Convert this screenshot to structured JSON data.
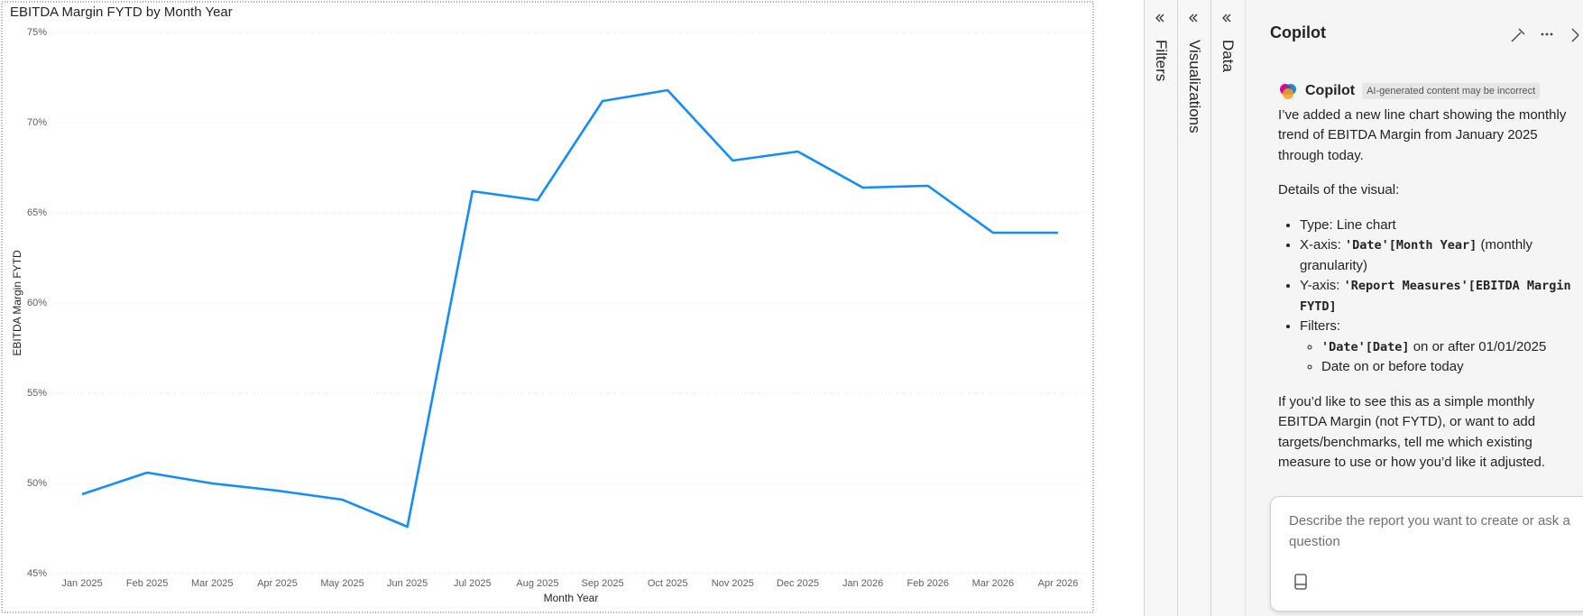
{
  "chart_data": {
    "type": "line",
    "title": "EBITDA Margin FYTD by Month Year",
    "x_label": "Month Year",
    "y_label": "EBITDA Margin FYTD",
    "categories": [
      "Jan 2025",
      "Feb 2025",
      "Mar 2025",
      "Apr 2025",
      "May 2025",
      "Jun 2025",
      "Jul 2025",
      "Aug 2025",
      "Sep 2025",
      "Oct 2025",
      "Nov 2025",
      "Dec 2025",
      "Jan 2026",
      "Feb 2026",
      "Mar 2026",
      "Apr 2026"
    ],
    "values": [
      49.4,
      50.6,
      50.0,
      49.6,
      49.1,
      47.6,
      66.2,
      65.7,
      71.2,
      71.8,
      67.9,
      68.4,
      66.4,
      66.5,
      63.9,
      63.9
    ],
    "color": "#118dff",
    "ylim": [
      45,
      75
    ],
    "yticks": [
      {
        "value": 45,
        "label": "45%"
      },
      {
        "value": 50,
        "label": "50%"
      },
      {
        "value": 55,
        "label": "55%"
      },
      {
        "value": 60,
        "label": "60%"
      },
      {
        "value": 65,
        "label": "65%"
      },
      {
        "value": 70,
        "label": "70%"
      },
      {
        "value": 75,
        "label": "75%"
      }
    ],
    "grid": true
  },
  "panes": {
    "filters": "Filters",
    "visualizations": "Visualizations",
    "data": "Data"
  },
  "copilot": {
    "title": "Copilot",
    "message": {
      "sender": "Copilot",
      "badge": "AI-generated content may be incorrect",
      "intro": "I’ve added a new line chart showing the monthly trend of EBITDA Margin from January 2025 through today.",
      "details_heading": "Details of the visual:",
      "items": [
        {
          "text": "Type: Line chart"
        },
        {
          "label": "X-axis:",
          "code": "'Date'[Month Year]",
          "text": "(monthly granularity)"
        },
        {
          "label": "Y-axis:",
          "code": "'Report Measures'[EBITDA Margin FYTD]"
        },
        {
          "label": "Filters:",
          "subitems": [
            {
              "code": "'Date'[Date]",
              "text": "on or after 01/01/2025"
            },
            {
              "text": "Date on or before today"
            }
          ]
        }
      ],
      "closing": "If you’d like to see this as a simple monthly EBITDA Margin (not FYTD), or want to add targets/benchmarks, tell me which existing measure to use or how you’d like it adjusted."
    },
    "input_placeholder": "Describe the report you want to create or ask a question"
  }
}
